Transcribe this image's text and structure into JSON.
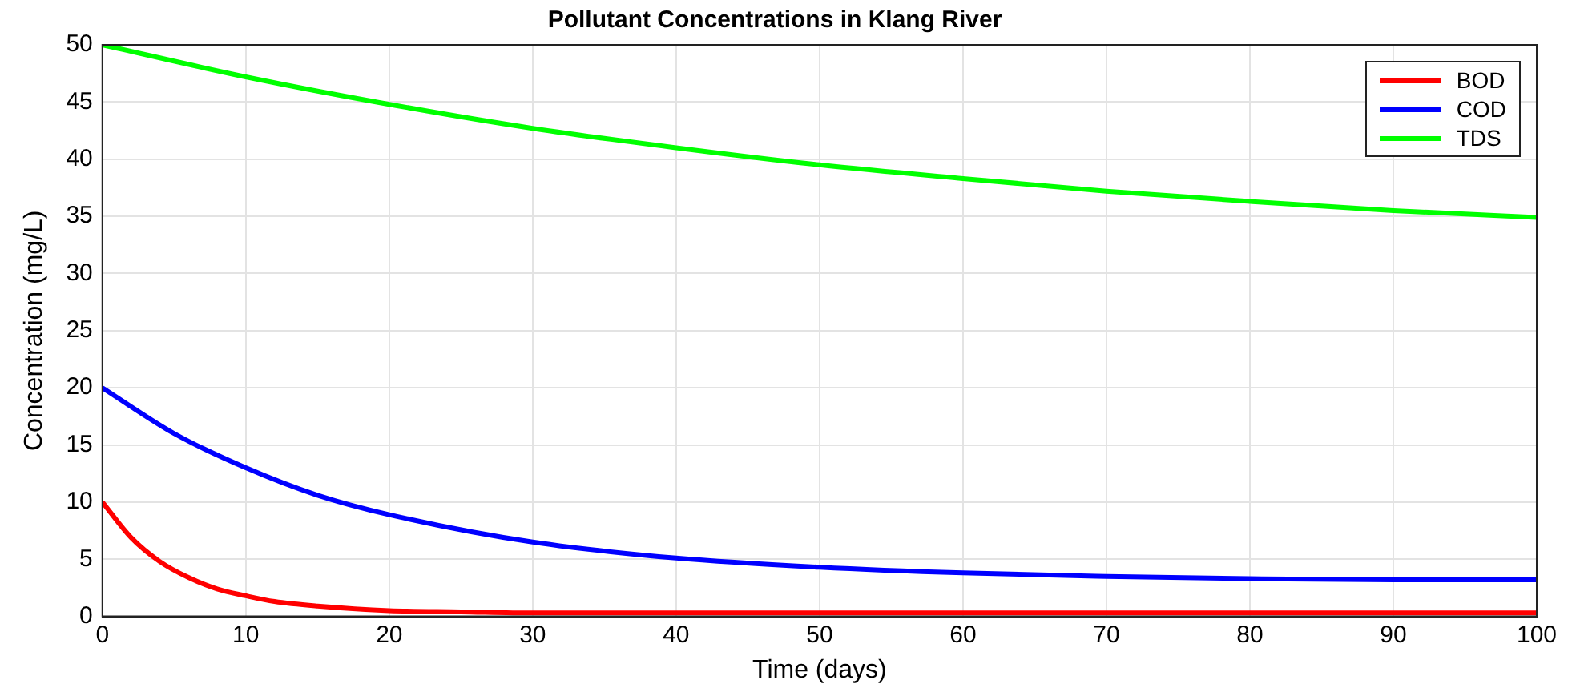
{
  "chart_data": {
    "type": "line",
    "title": "Pollutant Concentrations in Klang River",
    "xlabel": "Time (days)",
    "ylabel": "Concentration (mg/L)",
    "xlim": [
      0,
      100
    ],
    "xticks": [
      0,
      10,
      20,
      30,
      40,
      50,
      60,
      70,
      80,
      90,
      100
    ],
    "ylim": [
      0,
      50
    ],
    "yticks": [
      0,
      5,
      10,
      15,
      20,
      25,
      30,
      35,
      40,
      45,
      50
    ],
    "grid": true,
    "legend": "top right",
    "marker": "none",
    "line_style": "solid",
    "series": [
      {
        "name": "BOD",
        "color": "#ff0000",
        "x": [
          0,
          2,
          4,
          6,
          8,
          10,
          12,
          15,
          20,
          25,
          30,
          40,
          50,
          60,
          70,
          80,
          90,
          100
        ],
        "values": [
          10,
          6.9,
          4.8,
          3.4,
          2.4,
          1.8,
          1.3,
          0.9,
          0.5,
          0.4,
          0.3,
          0.3,
          0.3,
          0.3,
          0.3,
          0.3,
          0.3,
          0.3
        ]
      },
      {
        "name": "COD",
        "color": "#0000ff",
        "x": [
          0,
          5,
          10,
          15,
          20,
          30,
          40,
          50,
          60,
          70,
          80,
          90,
          100
        ],
        "values": [
          20,
          16,
          13,
          10.6,
          8.9,
          6.5,
          5.1,
          4.3,
          3.8,
          3.5,
          3.3,
          3.2,
          3.2
        ]
      },
      {
        "name": "TDS",
        "color": "#00ff00",
        "x": [
          0,
          10,
          20,
          30,
          40,
          50,
          60,
          70,
          80,
          90,
          100
        ],
        "values": [
          50,
          47.2,
          44.8,
          42.7,
          41,
          39.5,
          38.3,
          37.2,
          36.3,
          35.5,
          34.9
        ]
      }
    ]
  }
}
